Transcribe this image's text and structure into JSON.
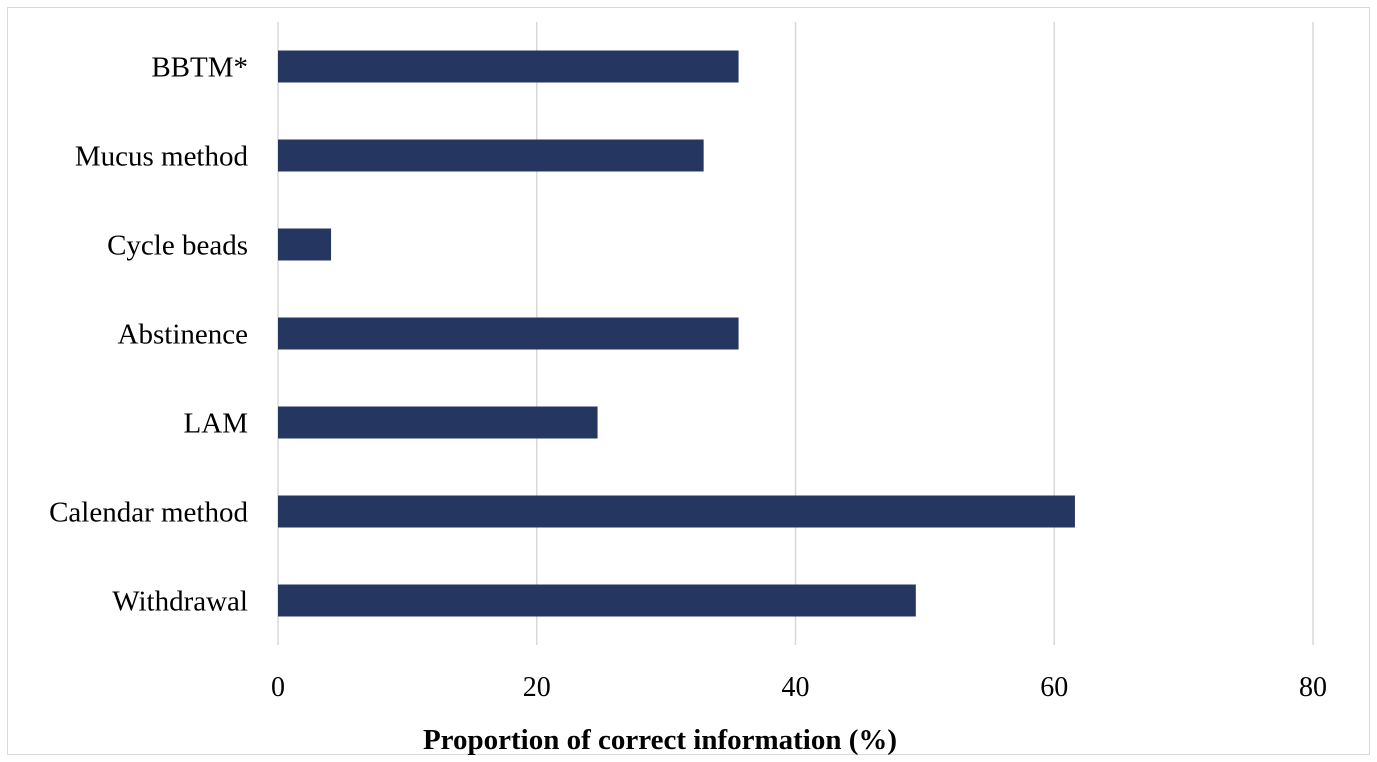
{
  "chart_data": {
    "type": "bar",
    "orientation": "horizontal",
    "categories": [
      "BBTM*",
      "Mucus method",
      "Cycle beads",
      "Abstinence",
      "LAM",
      "Calendar method",
      "Withdrawal"
    ],
    "values": [
      35.6,
      32.9,
      4.1,
      35.6,
      24.7,
      61.6,
      49.3
    ],
    "xlabel": "Proportion of correct information (%)",
    "ylabel": "",
    "xlim": [
      0,
      80
    ],
    "xticks": [
      "0",
      "20",
      "40",
      "60",
      "80"
    ],
    "grid": "vertical",
    "legend": "none",
    "colors": {
      "bar": "#253760",
      "grid": "#d9d9d9",
      "frame": "#d9d9d9"
    }
  }
}
